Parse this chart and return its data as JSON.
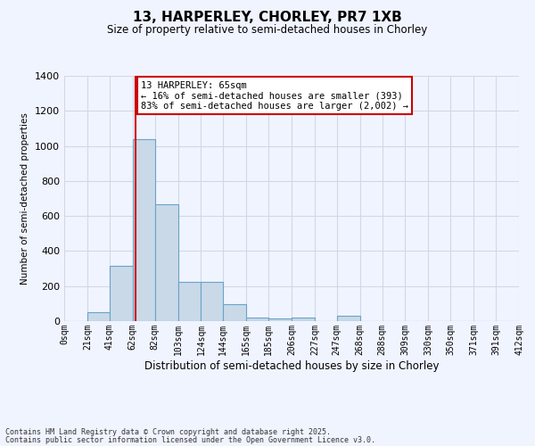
{
  "title_line1": "13, HARPERLEY, CHORLEY, PR7 1XB",
  "title_line2": "Size of property relative to semi-detached houses in Chorley",
  "xlabel": "Distribution of semi-detached houses by size in Chorley",
  "ylabel": "Number of semi-detached properties",
  "footnote1": "Contains HM Land Registry data © Crown copyright and database right 2025.",
  "footnote2": "Contains public sector information licensed under the Open Government Licence v3.0.",
  "annotation_title": "13 HARPERLEY: 65sqm",
  "annotation_line2": "← 16% of semi-detached houses are smaller (393)",
  "annotation_line3": "83% of semi-detached houses are larger (2,002) →",
  "bar_left_edges": [
    0,
    21,
    41,
    62,
    82,
    103,
    124,
    144,
    165,
    185,
    206,
    227,
    247,
    268,
    288,
    309,
    330,
    350,
    371,
    391
  ],
  "bar_widths": [
    21,
    20,
    21,
    20,
    21,
    21,
    20,
    21,
    20,
    21,
    21,
    20,
    21,
    20,
    21,
    21,
    20,
    21,
    20,
    21
  ],
  "bar_heights": [
    0,
    50,
    315,
    1040,
    665,
    225,
    225,
    95,
    20,
    15,
    20,
    0,
    30,
    0,
    0,
    0,
    0,
    0,
    0,
    0
  ],
  "bar_color": "#c9d9e8",
  "bar_edgecolor": "#6aa3c8",
  "bar_linewidth": 0.8,
  "redline_x": 65,
  "redline_color": "#cc0000",
  "redline_linewidth": 1.5,
  "ylim": [
    0,
    1400
  ],
  "yticks": [
    0,
    200,
    400,
    600,
    800,
    1000,
    1200,
    1400
  ],
  "xtick_labels": [
    "0sqm",
    "21sqm",
    "41sqm",
    "62sqm",
    "82sqm",
    "103sqm",
    "124sqm",
    "144sqm",
    "165sqm",
    "185sqm",
    "206sqm",
    "227sqm",
    "247sqm",
    "268sqm",
    "288sqm",
    "309sqm",
    "330sqm",
    "350sqm",
    "371sqm",
    "391sqm",
    "412sqm"
  ],
  "xtick_positions": [
    0,
    21,
    41,
    62,
    82,
    103,
    124,
    144,
    165,
    185,
    206,
    227,
    247,
    268,
    288,
    309,
    330,
    350,
    371,
    391,
    412
  ],
  "grid_color": "#d0d8e8",
  "background_color": "#f0f4ff",
  "xlim": [
    0,
    412
  ]
}
